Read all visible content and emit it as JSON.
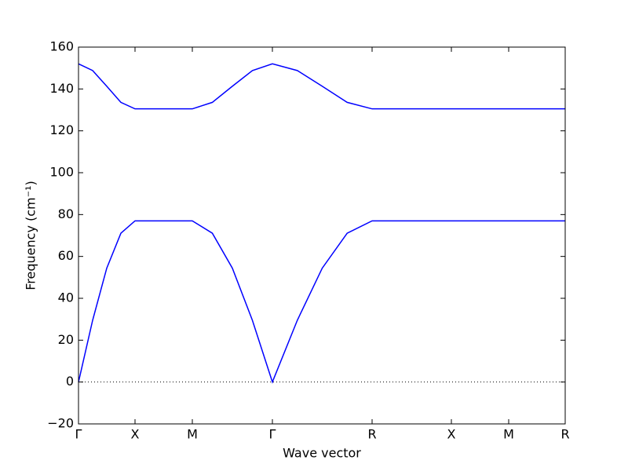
{
  "chart_data": {
    "type": "line",
    "xlabel": "Wave vector",
    "ylabel": "Frequency (cm⁻¹)",
    "x": [
      0,
      18,
      36,
      54,
      72,
      145,
      170.5,
      196,
      221.5,
      247,
      278.75,
      310.5,
      342.25,
      374,
      475,
      548,
      620
    ],
    "series": [
      {
        "color": "#0000ff",
        "values": [
          0,
          29.5,
          54.4,
          71.1,
          77,
          77,
          71.1,
          54.4,
          29.5,
          0,
          29.5,
          54.4,
          71.1,
          77,
          77,
          77,
          77
        ]
      },
      {
        "color": "#0000ff",
        "values": [
          152,
          148.8,
          141.3,
          133.6,
          130.5,
          130.5,
          133.6,
          141.3,
          148.8,
          152,
          148.8,
          141.3,
          133.6,
          130.5,
          130.5,
          130.5,
          130.5
        ]
      }
    ],
    "xlim": [
      0,
      620
    ],
    "xticks": [
      {
        "value": 0,
        "label": "Γ"
      },
      {
        "value": 72,
        "label": "X"
      },
      {
        "value": 145,
        "label": "M"
      },
      {
        "value": 247,
        "label": "Γ"
      },
      {
        "value": 374,
        "label": "R"
      },
      {
        "value": 475,
        "label": "X"
      },
      {
        "value": 548,
        "label": "M"
      },
      {
        "value": 620,
        "label": "R"
      }
    ],
    "ylim": [
      -20,
      160
    ],
    "yticks": [
      {
        "value": -20,
        "label": "−20"
      },
      0,
      20,
      40,
      60,
      80,
      100,
      120,
      140,
      160
    ],
    "reference_line": 0
  }
}
